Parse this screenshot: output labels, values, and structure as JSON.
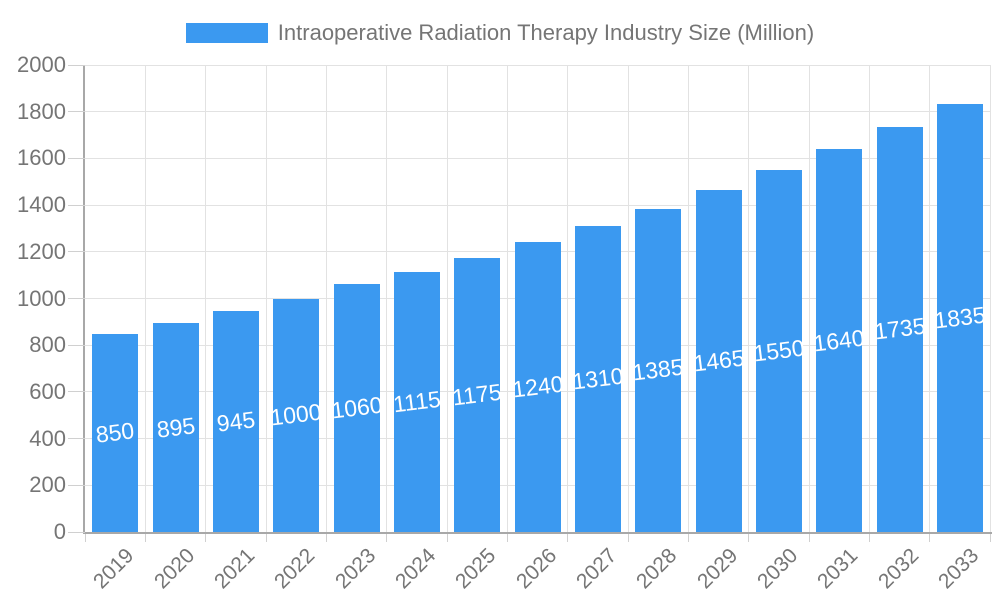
{
  "legend": {
    "label": "Intraoperative Radiation Therapy Industry Size (Million)"
  },
  "colors": {
    "bar": "#3b99f0",
    "grid": "#e2e2e2",
    "axis": "#a8a8a8",
    "tick": "#d0d0d0",
    "text": "#757575",
    "value_label": "#ffffff",
    "background": "#ffffff"
  },
  "chart_data": {
    "type": "bar",
    "title": "Intraoperative Radiation Therapy Industry Size (Million)",
    "categories": [
      "2019",
      "2020",
      "2021",
      "2022",
      "2023",
      "2024",
      "2025",
      "2026",
      "2027",
      "2028",
      "2029",
      "2030",
      "2031",
      "2032",
      "2033"
    ],
    "values": [
      850,
      895,
      945,
      1000,
      1060,
      1115,
      1175,
      1240,
      1310,
      1385,
      1465,
      1550,
      1640,
      1735,
      1835
    ],
    "xlabel": "",
    "ylabel": "",
    "ylim": [
      0,
      2000
    ],
    "ytick_step": 200,
    "yticks": [
      0,
      200,
      400,
      600,
      800,
      1000,
      1200,
      1400,
      1600,
      1800,
      2000
    ],
    "grid": true,
    "legend_position": "top",
    "x_tick_rotation": -45,
    "value_label_rotation": -7,
    "value_label_position": "middle-of-bar"
  }
}
